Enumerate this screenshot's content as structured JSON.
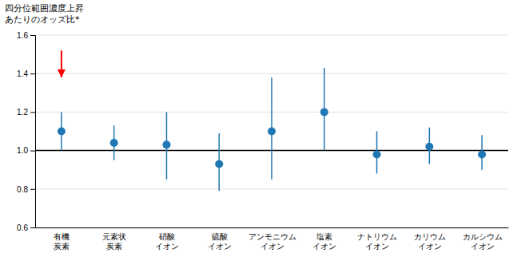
{
  "chart_data": {
    "type": "errorbar",
    "ylabel": "四分位範囲濃度上昇\nあたりのオッズ比*",
    "categories": [
      "有機\n炭素",
      "元素状\n炭素",
      "硝酸\nイオン",
      "硫酸\nイオン",
      "アンモニウム\nイオン",
      "塩素\nイオン",
      "ナトリウム\nイオン",
      "カリウム\nイオン",
      "カルシウム\nイオン"
    ],
    "values": [
      1.1,
      1.04,
      1.03,
      0.93,
      1.1,
      1.2,
      0.98,
      1.02,
      0.98
    ],
    "ci_low": [
      1.0,
      0.95,
      0.85,
      0.79,
      0.85,
      1.0,
      0.88,
      0.93,
      0.9
    ],
    "ci_high": [
      1.2,
      1.13,
      1.2,
      1.09,
      1.38,
      1.43,
      1.1,
      1.12,
      1.08
    ],
    "ylim": [
      0.6,
      1.6
    ],
    "yticks": [
      0.6,
      0.8,
      {
        "value": 1.0,
        "label": "1.0"
      },
      1.2,
      1.4,
      1.6
    ],
    "grid": true,
    "reference_line": 1.0,
    "annotations": [
      {
        "type": "arrow",
        "x": 0,
        "y_from": 1.52,
        "y_to": 1.38,
        "color": "red"
      }
    ]
  }
}
